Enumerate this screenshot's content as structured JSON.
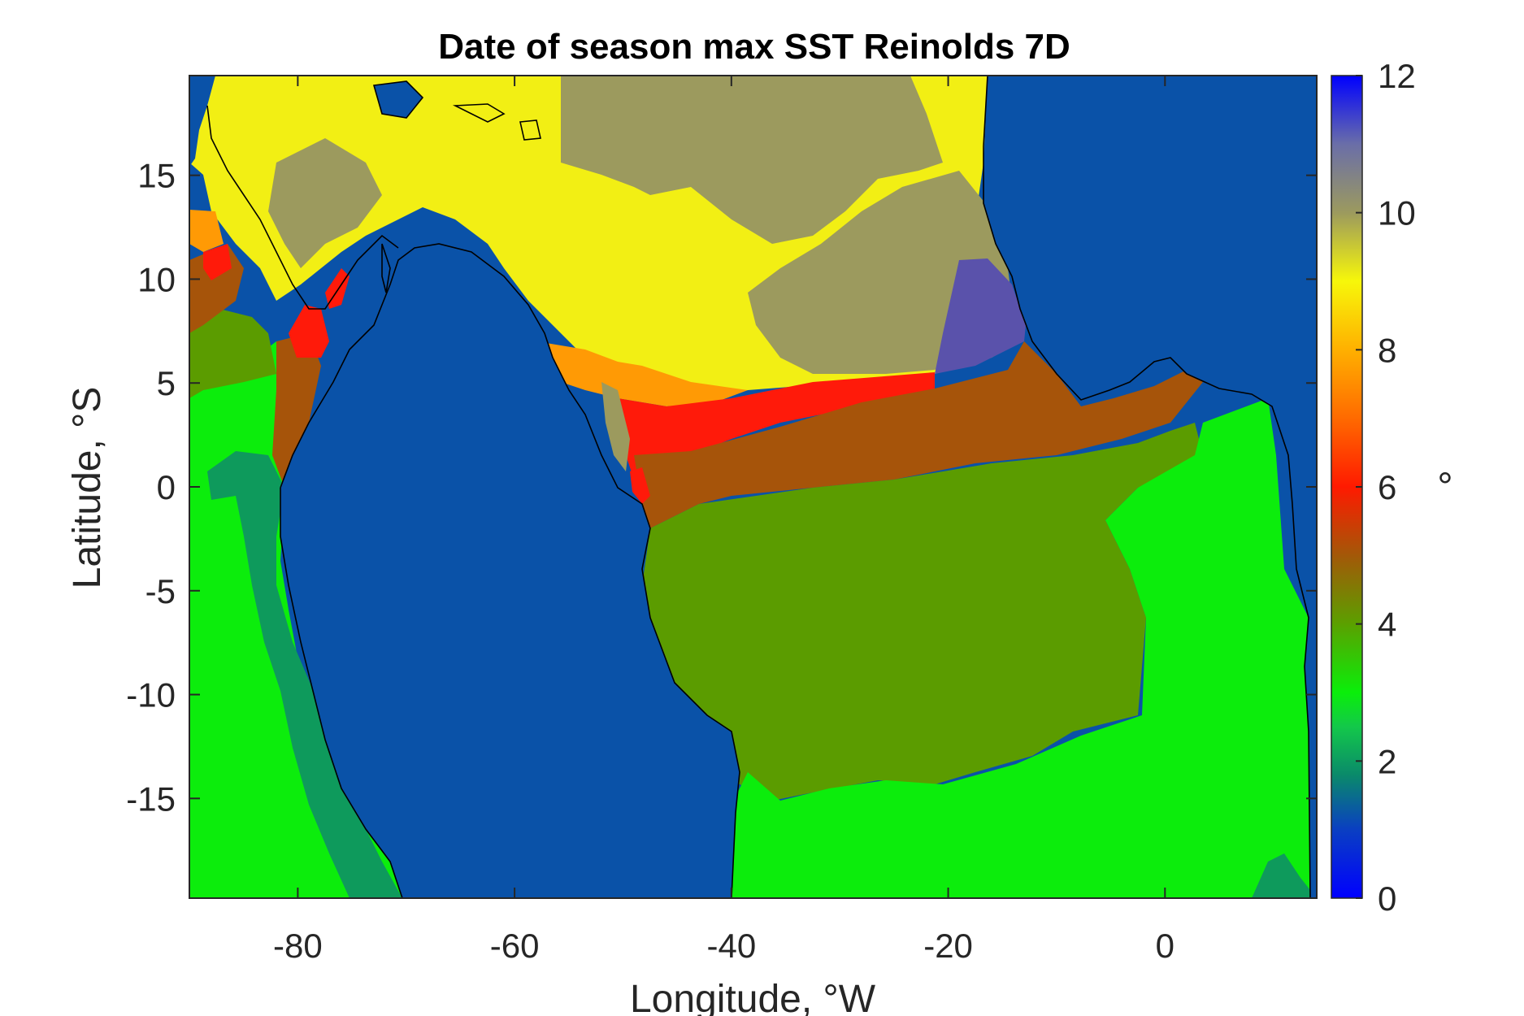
{
  "title": "Date of season max SST Reinolds 7D",
  "x_axis": {
    "label": "Longitude, °W",
    "range": [
      -90,
      14
    ],
    "ticks": [
      -80,
      -60,
      -40,
      -20,
      0
    ],
    "tick_labels": [
      "-80",
      "-60",
      "-40",
      "-20",
      "0"
    ]
  },
  "y_axis": {
    "label": "Latitude, °S",
    "range": [
      -19.8,
      19.8
    ],
    "ticks": [
      15,
      10,
      5,
      0,
      -5,
      -10,
      -15
    ],
    "tick_labels": [
      "15",
      "10",
      "5",
      "0",
      "-5",
      "-10",
      "-15"
    ]
  },
  "colorbar": {
    "label": "°",
    "range": [
      0,
      12
    ],
    "ticks": [
      0,
      2,
      4,
      6,
      8,
      10,
      12
    ],
    "tick_labels": [
      "0",
      "2",
      "4",
      "6",
      "8",
      "10",
      "12"
    ],
    "colormap_stops": [
      {
        "value": 0,
        "color": "#0000ff"
      },
      {
        "value": 1,
        "color": "#0a3fc2"
      },
      {
        "value": 1.8,
        "color": "#0a8a6a"
      },
      {
        "value": 2.5,
        "color": "#13c84a"
      },
      {
        "value": 3.0,
        "color": "#0aef0a"
      },
      {
        "value": 4.0,
        "color": "#5ba000"
      },
      {
        "value": 5.0,
        "color": "#a35808"
      },
      {
        "value": 6.0,
        "color": "#ff1a00"
      },
      {
        "value": 7.0,
        "color": "#ff6a00"
      },
      {
        "value": 8.0,
        "color": "#ffb000"
      },
      {
        "value": 9.0,
        "color": "#f7f70a"
      },
      {
        "value": 10.0,
        "color": "#9c9a5e"
      },
      {
        "value": 11.0,
        "color": "#6a6ea8"
      },
      {
        "value": 12.0,
        "color": "#0000ff"
      }
    ]
  },
  "map_colors": {
    "ocean_background": "#0a52a8",
    "gulf_yellow": "#f2ef14",
    "olive": "#9c9a5e",
    "olive_green": "#5b9c00",
    "bright_green": "#0ced0c",
    "teal": "#0e9a5c",
    "red": "#ff1a0a",
    "brown": "#a6540a",
    "orange": "#ff9a05",
    "purple": "#5a52ab",
    "coastline": "#000000"
  }
}
